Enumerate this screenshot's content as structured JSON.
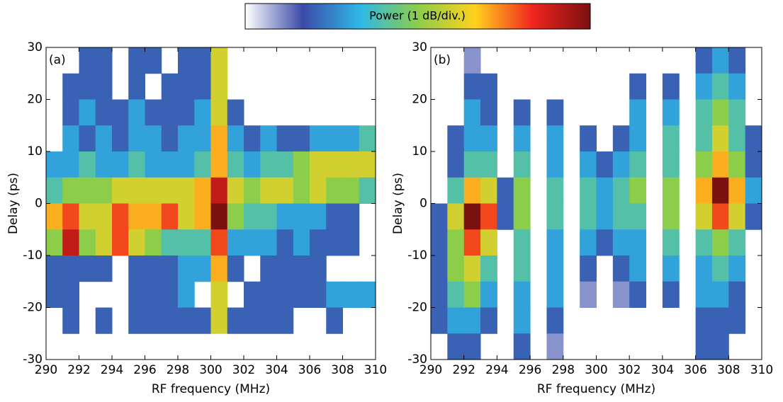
{
  "colorbar": {
    "title": "Power (1 dB/div.)",
    "zlim": [
      0,
      10
    ],
    "colormap": [
      "#ffffff",
      "#3b4ba8",
      "#2fb8e6",
      "#8ccd4a",
      "#ffd21e",
      "#f0241e",
      "#7a1010"
    ]
  },
  "chart_data": [
    {
      "type": "heatmap",
      "label": "(a)",
      "xlabel": "RF frequency (MHz)",
      "ylabel": "Delay (ps)",
      "xlim": [
        290,
        310
      ],
      "xticks": [
        290,
        292,
        294,
        296,
        298,
        300,
        302,
        304,
        306,
        308,
        310
      ],
      "ylim": [
        -30,
        30
      ],
      "yticks": [
        -30,
        -20,
        -10,
        0,
        10,
        20,
        30
      ],
      "x": [
        290.5,
        291.5,
        292.5,
        293.5,
        294.5,
        295.5,
        296.5,
        297.5,
        298.5,
        299.5,
        300.5,
        301.5,
        302.5,
        303.5,
        304.5,
        305.5,
        306.5,
        307.5,
        308.5,
        309.5
      ],
      "y": [
        27.5,
        22.5,
        17.5,
        12.5,
        7.5,
        2.5,
        -2.5,
        -7.5,
        -12.5,
        -17.5,
        -22.5,
        -27.5
      ],
      "z": [
        [
          null,
          null,
          2,
          2,
          null,
          2,
          2,
          null,
          2,
          2,
          6,
          null,
          null,
          null,
          null,
          null,
          null,
          null,
          null,
          null
        ],
        [
          null,
          2,
          2,
          2,
          null,
          2,
          null,
          2,
          2,
          2,
          6,
          null,
          null,
          null,
          null,
          null,
          null,
          null,
          null,
          null
        ],
        [
          null,
          2,
          3,
          2,
          2,
          3,
          2,
          2,
          2,
          3,
          6,
          2,
          null,
          null,
          null,
          null,
          null,
          null,
          null,
          null
        ],
        [
          null,
          3,
          2,
          3,
          2,
          3,
          3,
          2,
          3,
          3,
          7,
          3,
          2,
          3,
          2,
          2,
          3,
          3,
          3,
          4
        ],
        [
          3,
          3,
          4,
          3,
          3,
          4,
          3,
          3,
          3,
          4,
          7,
          4,
          3,
          4,
          4,
          5,
          6,
          6,
          6,
          6
        ],
        [
          4,
          5,
          5,
          5,
          6,
          6,
          6,
          6,
          6,
          7,
          9,
          6,
          5,
          6,
          6,
          5,
          6,
          5,
          5,
          4
        ],
        [
          7,
          8,
          6,
          6,
          8,
          7,
          7,
          8,
          6,
          7,
          10,
          5,
          4,
          4,
          3,
          3,
          3,
          2,
          2,
          null
        ],
        [
          5,
          9,
          5,
          6,
          8,
          6,
          5,
          4,
          4,
          4,
          8,
          3,
          3,
          3,
          2,
          3,
          2,
          2,
          2,
          null
        ],
        [
          2,
          2,
          2,
          2,
          null,
          2,
          2,
          2,
          3,
          3,
          7,
          2,
          null,
          2,
          2,
          2,
          2,
          null,
          null,
          null
        ],
        [
          2,
          2,
          null,
          null,
          null,
          2,
          2,
          2,
          3,
          null,
          6,
          null,
          2,
          2,
          2,
          2,
          2,
          3,
          3,
          3
        ],
        [
          null,
          2,
          null,
          2,
          null,
          2,
          2,
          2,
          2,
          2,
          6,
          2,
          2,
          2,
          2,
          null,
          null,
          2,
          null,
          null
        ],
        [
          null,
          null,
          null,
          null,
          null,
          null,
          null,
          null,
          null,
          null,
          null,
          null,
          null,
          null,
          null,
          null,
          null,
          null,
          null,
          null
        ]
      ]
    },
    {
      "type": "heatmap",
      "label": "(b)",
      "xlabel": "RF frequency (MHz)",
      "ylabel": "Delay (ps)",
      "xlim": [
        290,
        310
      ],
      "xticks": [
        290,
        292,
        294,
        296,
        298,
        300,
        302,
        304,
        306,
        308,
        310
      ],
      "ylim": [
        -30,
        30
      ],
      "yticks": [
        -30,
        -20,
        -10,
        0,
        10,
        20,
        30
      ],
      "x": [
        290.5,
        291.5,
        292.5,
        293.5,
        294.5,
        295.5,
        296.5,
        297.5,
        298.5,
        299.5,
        300.5,
        301.5,
        302.5,
        303.5,
        304.5,
        305.5,
        306.5,
        307.5,
        308.5,
        309.5
      ],
      "y": [
        27.5,
        22.5,
        17.5,
        12.5,
        7.5,
        2.5,
        -2.5,
        -7.5,
        -12.5,
        -17.5,
        -22.5,
        -27.5
      ],
      "z": [
        [
          null,
          null,
          1,
          null,
          null,
          null,
          null,
          null,
          null,
          null,
          null,
          null,
          null,
          null,
          null,
          null,
          2,
          3,
          2,
          null
        ],
        [
          null,
          null,
          2,
          2,
          null,
          null,
          null,
          null,
          null,
          null,
          null,
          null,
          2,
          null,
          2,
          null,
          3,
          4,
          3,
          null
        ],
        [
          null,
          null,
          3,
          2,
          null,
          2,
          null,
          2,
          null,
          null,
          null,
          null,
          3,
          null,
          3,
          null,
          4,
          5,
          4,
          null
        ],
        [
          null,
          2,
          3,
          3,
          null,
          3,
          null,
          3,
          null,
          2,
          null,
          2,
          3,
          null,
          4,
          null,
          4,
          6,
          4,
          2
        ],
        [
          null,
          2,
          4,
          4,
          null,
          4,
          null,
          3,
          null,
          3,
          2,
          3,
          4,
          null,
          4,
          null,
          5,
          7,
          5,
          2
        ],
        [
          null,
          4,
          7,
          6,
          2,
          5,
          null,
          4,
          null,
          4,
          3,
          4,
          5,
          null,
          5,
          null,
          7,
          10,
          7,
          3
        ],
        [
          2,
          6,
          10,
          8,
          2,
          5,
          null,
          4,
          null,
          4,
          3,
          4,
          4,
          null,
          5,
          null,
          6,
          8,
          6,
          2
        ],
        [
          2,
          5,
          8,
          6,
          null,
          4,
          null,
          3,
          null,
          3,
          2,
          3,
          3,
          null,
          4,
          null,
          4,
          5,
          4,
          null
        ],
        [
          2,
          5,
          6,
          4,
          null,
          4,
          null,
          3,
          null,
          2,
          null,
          2,
          3,
          null,
          3,
          null,
          3,
          4,
          3,
          null
        ],
        [
          2,
          4,
          5,
          3,
          null,
          3,
          null,
          3,
          null,
          1,
          null,
          1,
          2,
          null,
          2,
          null,
          3,
          3,
          2,
          null
        ],
        [
          2,
          3,
          3,
          2,
          null,
          3,
          null,
          2,
          null,
          null,
          null,
          null,
          null,
          null,
          null,
          null,
          2,
          2,
          2,
          null
        ],
        [
          null,
          2,
          2,
          null,
          null,
          2,
          null,
          1,
          null,
          null,
          null,
          null,
          null,
          null,
          null,
          null,
          2,
          2,
          null,
          null
        ]
      ]
    }
  ]
}
